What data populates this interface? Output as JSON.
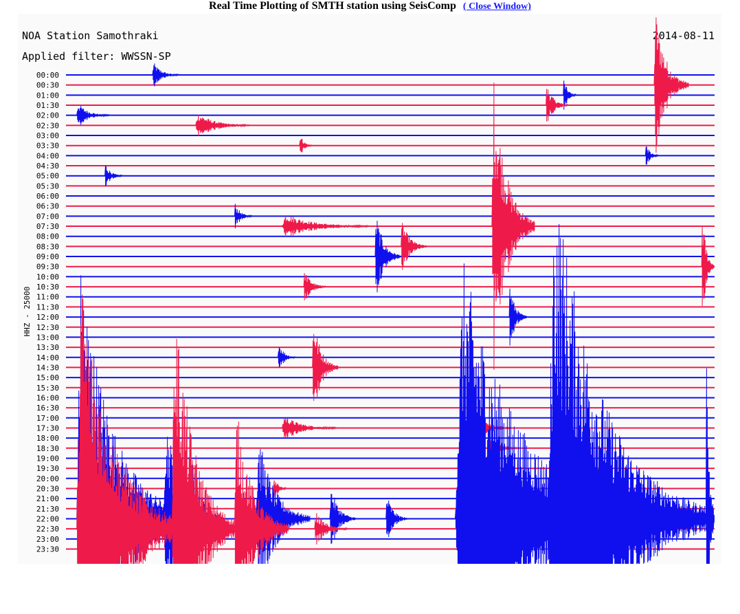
{
  "page": {
    "title": "Real Time Plotting of SMTH station using SeisComp",
    "close_link": "( Close Window)"
  },
  "header": {
    "station": "NOA Station Samothraki",
    "date": "2014-08-11",
    "filter": "Applied filter: WWSSN-SP",
    "channel": "HHZ - 25000"
  },
  "colors": {
    "blue": "#1010ee",
    "red": "#ee1a4a",
    "background": "#fafafa",
    "text": "#000000"
  },
  "chart_data": {
    "type": "line",
    "title": "",
    "xlabel": "",
    "ylabel": "HHZ - 25000",
    "grid": false,
    "rows": [
      {
        "label": "00:00",
        "color": "blue"
      },
      {
        "label": "00:30",
        "color": "red"
      },
      {
        "label": "01:00",
        "color": "blue"
      },
      {
        "label": "01:30",
        "color": "red"
      },
      {
        "label": "02:00",
        "color": "blue"
      },
      {
        "label": "02:30",
        "color": "red"
      },
      {
        "label": "03:00",
        "color": "blue"
      },
      {
        "label": "03:30",
        "color": "red"
      },
      {
        "label": "04:00",
        "color": "blue"
      },
      {
        "label": "04:30",
        "color": "red"
      },
      {
        "label": "05:00",
        "color": "blue"
      },
      {
        "label": "05:30",
        "color": "red"
      },
      {
        "label": "06:00",
        "color": "blue"
      },
      {
        "label": "06:30",
        "color": "red"
      },
      {
        "label": "07:00",
        "color": "blue"
      },
      {
        "label": "07:30",
        "color": "red"
      },
      {
        "label": "08:00",
        "color": "blue"
      },
      {
        "label": "08:30",
        "color": "red"
      },
      {
        "label": "09:00",
        "color": "blue"
      },
      {
        "label": "09:30",
        "color": "red"
      },
      {
        "label": "10:00",
        "color": "blue"
      },
      {
        "label": "10:30",
        "color": "red"
      },
      {
        "label": "11:00",
        "color": "blue"
      },
      {
        "label": "11:30",
        "color": "red"
      },
      {
        "label": "12:00",
        "color": "blue"
      },
      {
        "label": "12:30",
        "color": "red"
      },
      {
        "label": "13:00",
        "color": "blue"
      },
      {
        "label": "13:30",
        "color": "red"
      },
      {
        "label": "14:00",
        "color": "blue"
      },
      {
        "label": "14:30",
        "color": "red"
      },
      {
        "label": "15:00",
        "color": "blue"
      },
      {
        "label": "15:30",
        "color": "red"
      },
      {
        "label": "16:00",
        "color": "blue"
      },
      {
        "label": "16:30",
        "color": "red"
      },
      {
        "label": "17:00",
        "color": "blue"
      },
      {
        "label": "17:30",
        "color": "red"
      },
      {
        "label": "18:00",
        "color": "blue"
      },
      {
        "label": "18:30",
        "color": "red"
      },
      {
        "label": "19:00",
        "color": "blue"
      },
      {
        "label": "19:30",
        "color": "red"
      },
      {
        "label": "20:00",
        "color": "blue"
      },
      {
        "label": "20:30",
        "color": "red"
      },
      {
        "label": "21:00",
        "color": "blue"
      },
      {
        "label": "21:30",
        "color": "red"
      },
      {
        "label": "22:00",
        "color": "blue"
      },
      {
        "label": "22:30",
        "color": "red"
      },
      {
        "label": "23:00",
        "color": "blue"
      },
      {
        "label": "23:30",
        "color": "red"
      }
    ],
    "events": [
      {
        "row": 0,
        "minute": 4.0,
        "amplitude": 3,
        "duration": 1.2
      },
      {
        "row": 1,
        "minute": 27.2,
        "amplitude": 18,
        "duration": 1.6
      },
      {
        "row": 2,
        "minute": 23.0,
        "amplitude": 4,
        "duration": 0.6
      },
      {
        "row": 3,
        "minute": 22.2,
        "amplitude": 5,
        "duration": 1.0
      },
      {
        "row": 4,
        "minute": 0.5,
        "amplitude": 3,
        "duration": 1.5
      },
      {
        "row": 5,
        "minute": 6.0,
        "amplitude": 3,
        "duration": 2.5
      },
      {
        "row": 7,
        "minute": 10.8,
        "amplitude": 3,
        "duration": 0.6
      },
      {
        "row": 8,
        "minute": 26.8,
        "amplitude": 3,
        "duration": 0.6
      },
      {
        "row": 10,
        "minute": 1.8,
        "amplitude": 3,
        "duration": 0.8
      },
      {
        "row": 14,
        "minute": 7.8,
        "amplitude": 3,
        "duration": 0.8
      },
      {
        "row": 15,
        "minute": 10.0,
        "amplitude": 3,
        "duration": 4.0
      },
      {
        "row": 15,
        "minute": 19.7,
        "amplitude": 35,
        "duration": 2.0
      },
      {
        "row": 18,
        "minute": 14.3,
        "amplitude": 10,
        "duration": 1.2
      },
      {
        "row": 17,
        "minute": 15.5,
        "amplitude": 6,
        "duration": 1.2
      },
      {
        "row": 19,
        "minute": 29.4,
        "amplitude": 14,
        "duration": 0.8
      },
      {
        "row": 21,
        "minute": 11.0,
        "amplitude": 4,
        "duration": 1.0
      },
      {
        "row": 24,
        "minute": 20.5,
        "amplitude": 8,
        "duration": 0.8
      },
      {
        "row": 28,
        "minute": 9.8,
        "amplitude": 4,
        "duration": 0.8
      },
      {
        "row": 29,
        "minute": 11.4,
        "amplitude": 12,
        "duration": 1.2
      },
      {
        "row": 35,
        "minute": 18.6,
        "amplitude": 5,
        "duration": 2.0
      },
      {
        "row": 35,
        "minute": 10.0,
        "amplitude": 3,
        "duration": 2.5
      },
      {
        "row": 37,
        "minute": 19.5,
        "amplitude": 3,
        "duration": 1.5
      },
      {
        "row": 41,
        "minute": 2.3,
        "amplitude": 4,
        "duration": 0.6
      },
      {
        "row": 41,
        "minute": 9.6,
        "amplitude": 3,
        "duration": 0.6
      },
      {
        "row": 44,
        "minute": 0.5,
        "amplitude": 60,
        "duration": 5.0
      },
      {
        "row": 44,
        "minute": 4.5,
        "amplitude": 25,
        "duration": 2.5
      },
      {
        "row": 44,
        "minute": 5.8,
        "amplitude": 14,
        "duration": 1.5
      },
      {
        "row": 44,
        "minute": 8.8,
        "amplitude": 20,
        "duration": 2.5
      },
      {
        "row": 44,
        "minute": 12.2,
        "amplitude": 8,
        "duration": 1.2
      },
      {
        "row": 44,
        "minute": 14.8,
        "amplitude": 6,
        "duration": 1.0
      },
      {
        "row": 44,
        "minute": 18.0,
        "amplitude": 60,
        "duration": 9.0
      },
      {
        "row": 44,
        "minute": 22.3,
        "amplitude": 80,
        "duration": 7.5
      },
      {
        "row": 44,
        "minute": 29.6,
        "amplitude": 50,
        "duration": 0.4
      },
      {
        "row": 45,
        "minute": 0.5,
        "amplitude": 60,
        "duration": 5.0
      },
      {
        "row": 45,
        "minute": 3.5,
        "amplitude": 10,
        "duration": 1.2
      },
      {
        "row": 45,
        "minute": 4.9,
        "amplitude": 55,
        "duration": 3.0
      },
      {
        "row": 45,
        "minute": 7.8,
        "amplitude": 28,
        "duration": 2.5
      },
      {
        "row": 45,
        "minute": 11.5,
        "amplitude": 4,
        "duration": 1.5
      }
    ]
  }
}
